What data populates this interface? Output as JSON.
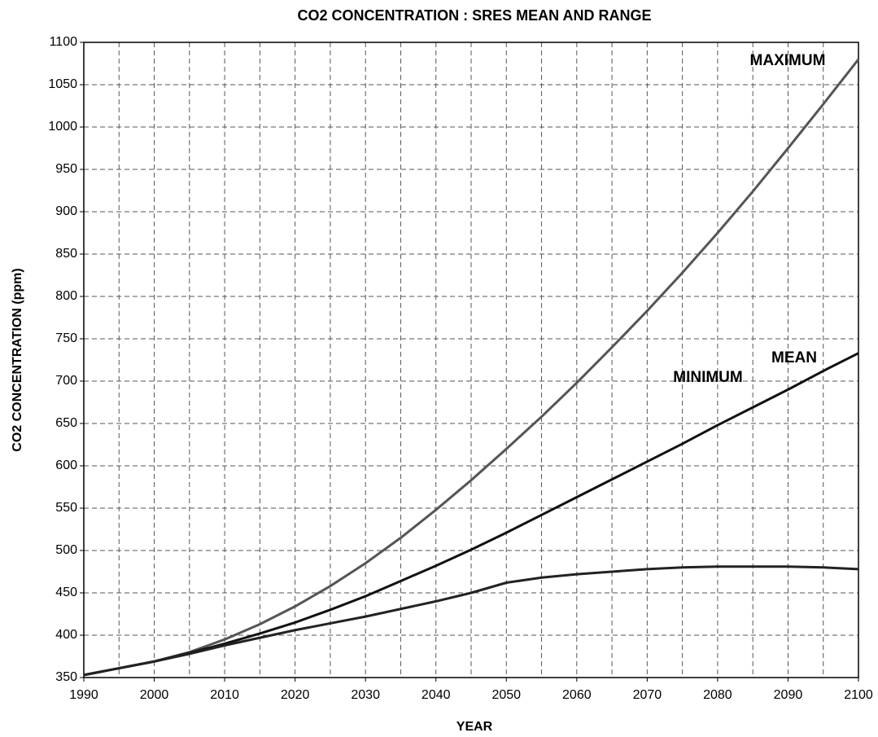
{
  "chart_data": {
    "type": "line",
    "title": "CO2 CONCENTRATION : SRES MEAN AND RANGE",
    "xlabel": "YEAR",
    "ylabel": "CO2 CONCENTRATION  (ppm)",
    "x": [
      1990,
      1995,
      2000,
      2005,
      2010,
      2015,
      2020,
      2025,
      2030,
      2035,
      2040,
      2045,
      2050,
      2055,
      2060,
      2065,
      2070,
      2075,
      2080,
      2085,
      2090,
      2095,
      2100
    ],
    "series": [
      {
        "name": "MAXIMUM",
        "color": "#555555",
        "values": [
          353,
          361,
          369,
          380,
          395,
          413,
          434,
          458,
          485,
          515,
          548,
          583,
          620,
          658,
          698,
          740,
          783,
          828,
          875,
          924,
          975,
          1027,
          1080
        ]
      },
      {
        "name": "MEAN",
        "color": "#111111",
        "values": [
          353,
          361,
          369,
          379,
          390,
          402,
          415,
          430,
          446,
          464,
          482,
          501,
          521,
          542,
          563,
          584,
          605,
          626,
          648,
          669,
          690,
          712,
          733
        ]
      },
      {
        "name": "MINIMUM",
        "color": "#222222",
        "values": [
          353,
          361,
          369,
          378,
          388,
          397,
          406,
          414,
          422,
          431,
          440,
          450,
          462,
          468,
          472,
          475,
          478,
          480,
          481,
          481,
          481,
          480,
          478
        ]
      }
    ],
    "xlim": [
      1990,
      2100
    ],
    "xticks": [
      1990,
      2000,
      2010,
      2020,
      2030,
      2040,
      2050,
      2060,
      2070,
      2080,
      2090,
      2100
    ],
    "xminorticks": [
      1995,
      2005,
      2015,
      2025,
      2035,
      2045,
      2055,
      2065,
      2075,
      2085,
      2095
    ],
    "ylim": [
      350,
      1100
    ],
    "yticks": [
      350,
      400,
      450,
      500,
      550,
      600,
      650,
      700,
      750,
      800,
      850,
      900,
      950,
      1000,
      1050,
      1100
    ],
    "grid": true
  }
}
